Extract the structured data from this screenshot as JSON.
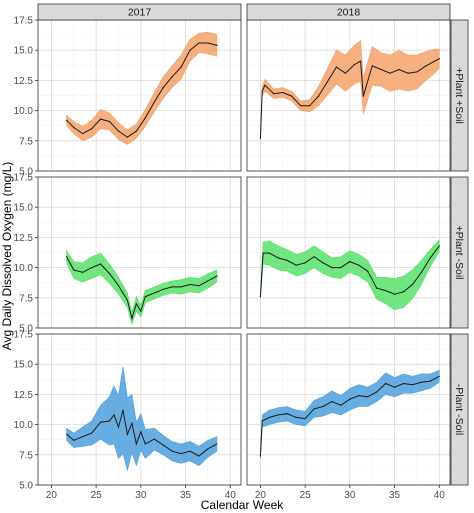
{
  "chart_data": {
    "type": "line",
    "xlabel": "Calendar Week",
    "ylabel": "Avg Daily Dissolved Oxygen (mg/L)",
    "xlim": [
      18.5,
      41.2
    ],
    "ylim": [
      5,
      17.5
    ],
    "x_ticks": [
      "20",
      "25",
      "30",
      "35",
      "40"
    ],
    "y_ticks": [
      "5.0",
      "7.5",
      "10.0",
      "12.5",
      "15.0",
      "17.5"
    ],
    "grid": true,
    "legend": "none",
    "columns": [
      "2017",
      "2018"
    ],
    "rows": [
      "+Plant +Soil",
      "+Plant -Soil",
      "-Plant -Soil"
    ],
    "row_colors": [
      "#f4a26a",
      "#58e06a",
      "#4d9fdc"
    ],
    "line_color": "#1a1a1a",
    "panels": [
      {
        "row": "+Plant +Soil",
        "col": "2017",
        "x": [
          21.7,
          22.5,
          23.5,
          24.5,
          25.5,
          26.5,
          27.5,
          28.5,
          29.5,
          30.5,
          31.5,
          32.5,
          33.5,
          34.5,
          35.5,
          36.5,
          37.5,
          38.5
        ],
        "mean": [
          9.2,
          8.6,
          8.1,
          8.5,
          9.3,
          9.1,
          8.3,
          7.8,
          8.3,
          9.4,
          10.7,
          11.9,
          12.8,
          13.6,
          15.0,
          15.6,
          15.6,
          15.4
        ],
        "band": [
          0.4,
          0.5,
          0.6,
          0.7,
          0.8,
          0.7,
          0.7,
          0.6,
          0.6,
          0.7,
          0.8,
          0.9,
          0.9,
          1.0,
          0.9,
          0.8,
          0.9,
          0.9
        ]
      },
      {
        "row": "+Plant +Soil",
        "col": "2018",
        "x": [
          20.0,
          20.2,
          20.5,
          21.5,
          22.5,
          23.5,
          24.5,
          25.5,
          26.5,
          27.5,
          28.5,
          29.5,
          30.5,
          31.2,
          31.5,
          32.5,
          33.5,
          34.5,
          35.5,
          36.5,
          37.5,
          38.5,
          39.5,
          40.0
        ],
        "mean": [
          7.7,
          11.6,
          12.1,
          11.4,
          11.5,
          11.2,
          10.4,
          10.4,
          11.2,
          12.4,
          13.6,
          13.1,
          13.8,
          14.1,
          11.2,
          13.7,
          13.4,
          13.1,
          13.4,
          13.1,
          13.2,
          13.7,
          14.1,
          14.3
        ],
        "band": [
          0.2,
          0.4,
          0.5,
          0.4,
          0.4,
          0.4,
          0.4,
          0.5,
          0.8,
          1.1,
          1.4,
          1.5,
          1.6,
          1.7,
          1.5,
          1.6,
          1.4,
          1.5,
          1.6,
          1.5,
          1.4,
          1.2,
          1.0,
          0.8
        ]
      },
      {
        "row": "+Plant -Soil",
        "col": "2017",
        "x": [
          21.7,
          22.5,
          23.5,
          24.5,
          25.5,
          26.5,
          27.5,
          28.5,
          29.0,
          29.5,
          30.0,
          30.5,
          31.5,
          32.5,
          33.5,
          34.5,
          35.5,
          36.5,
          37.5,
          38.5
        ],
        "mean": [
          10.9,
          9.8,
          9.6,
          10.0,
          10.3,
          9.5,
          8.5,
          7.3,
          5.8,
          7.0,
          6.4,
          7.6,
          7.9,
          8.2,
          8.4,
          8.4,
          8.6,
          8.5,
          8.9,
          9.3
        ],
        "band": [
          0.5,
          0.7,
          0.8,
          0.9,
          0.9,
          0.8,
          0.7,
          0.6,
          0.5,
          0.6,
          0.5,
          0.5,
          0.5,
          0.5,
          0.5,
          0.6,
          0.6,
          0.6,
          0.6,
          0.5
        ]
      },
      {
        "row": "+Plant -Soil",
        "col": "2018",
        "x": [
          20.0,
          20.3,
          21.0,
          22.0,
          23.0,
          24.0,
          25.0,
          26.0,
          27.0,
          28.0,
          29.0,
          30.0,
          31.0,
          32.0,
          33.0,
          34.0,
          35.0,
          36.0,
          37.0,
          38.0,
          39.0,
          40.0
        ],
        "mean": [
          7.6,
          11.2,
          11.2,
          10.8,
          10.6,
          10.2,
          10.4,
          10.9,
          10.4,
          10.0,
          10.0,
          10.5,
          10.2,
          9.7,
          8.3,
          8.1,
          7.8,
          8.0,
          8.6,
          9.6,
          10.8,
          11.8
        ],
        "band": [
          0.2,
          0.9,
          1.0,
          1.0,
          0.9,
          0.9,
          0.9,
          0.9,
          0.9,
          0.8,
          0.9,
          0.9,
          0.9,
          0.9,
          0.9,
          1.1,
          1.3,
          1.3,
          1.2,
          1.0,
          0.7,
          0.5
        ]
      },
      {
        "row": "-Plant -Soil",
        "col": "2017",
        "x": [
          21.7,
          22.5,
          23.5,
          24.5,
          25.5,
          26.5,
          27.0,
          27.5,
          28.0,
          28.5,
          29.0,
          29.5,
          30.0,
          30.5,
          31.5,
          32.5,
          33.5,
          34.5,
          35.5,
          36.5,
          37.5,
          38.5
        ],
        "mean": [
          9.2,
          8.7,
          9.0,
          9.3,
          10.2,
          10.3,
          10.8,
          9.8,
          11.2,
          9.2,
          10.1,
          8.4,
          9.4,
          8.4,
          8.8,
          8.3,
          7.8,
          7.6,
          7.8,
          7.4,
          8.0,
          8.4
        ],
        "band": [
          0.5,
          0.6,
          0.8,
          1.0,
          1.4,
          2.0,
          2.4,
          2.6,
          3.6,
          3.0,
          2.4,
          1.8,
          1.5,
          1.2,
          0.9,
          0.8,
          0.8,
          0.8,
          0.8,
          0.8,
          0.7,
          0.6
        ]
      },
      {
        "row": "-Plant -Soil",
        "col": "2018",
        "x": [
          20.0,
          20.2,
          21.0,
          22.0,
          23.0,
          24.0,
          25.0,
          26.0,
          27.0,
          28.0,
          29.0,
          30.0,
          31.0,
          32.0,
          33.0,
          34.0,
          35.0,
          36.0,
          37.0,
          38.0,
          39.0,
          40.0
        ],
        "mean": [
          7.4,
          10.3,
          10.6,
          10.8,
          10.9,
          10.6,
          10.5,
          11.3,
          11.5,
          11.9,
          11.6,
          12.1,
          12.4,
          12.3,
          12.7,
          13.4,
          13.1,
          13.4,
          13.3,
          13.5,
          13.6,
          14.0
        ],
        "band": [
          0.2,
          0.5,
          0.6,
          0.6,
          0.6,
          0.6,
          0.6,
          0.7,
          0.8,
          0.9,
          0.8,
          0.9,
          0.9,
          0.8,
          0.8,
          0.9,
          0.8,
          0.8,
          0.7,
          0.7,
          0.6,
          0.5
        ]
      }
    ]
  }
}
